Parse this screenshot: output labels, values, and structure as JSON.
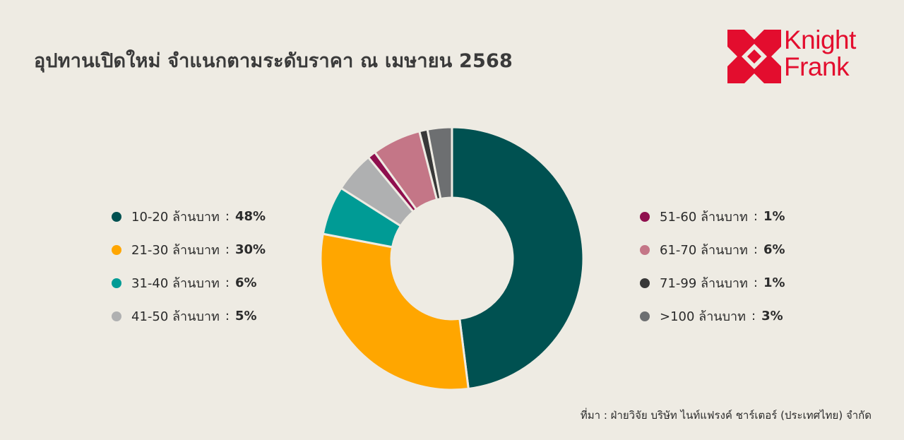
{
  "header": {
    "title": "อุปทานเปิดใหม่ จำแนกตามระดับราคา ณ เมษายน 2568"
  },
  "logo": {
    "line1": "Knight",
    "line2": "Frank",
    "color": "#e30d2e"
  },
  "chart_data": {
    "type": "pie",
    "style": "donut",
    "title": "อุปทานเปิดใหม่ จำแนกตามระดับราคา ณ เมษายน 2568",
    "categories": [
      "10-20 ล้านบาท",
      "21-30 ล้านบาท",
      "31-40 ล้านบาท",
      "41-50 ล้านบาท",
      "51-60 ล้านบาท",
      "61-70 ล้านบาท",
      "71-99 ล้านบาท",
      ">100 ล้านบาท"
    ],
    "values": [
      48,
      30,
      6,
      5,
      1,
      6,
      1,
      3
    ],
    "labels": [
      "48%",
      "30%",
      "6%",
      "5%",
      "1%",
      "6%",
      "1%",
      "3%"
    ],
    "colors": [
      "#005151",
      "#ffa600",
      "#009b95",
      "#afb0b1",
      "#8f0f4e",
      "#c47687",
      "#383838",
      "#6d6f71"
    ],
    "legend_placement": "split left and right of chart"
  },
  "footer": {
    "source": "ที่มา : ฝ่ายวิจัย บริษัท ไนท์แฟรงค์ ชาร์เตอร์ (ประเทศไทย) จำกัด"
  }
}
